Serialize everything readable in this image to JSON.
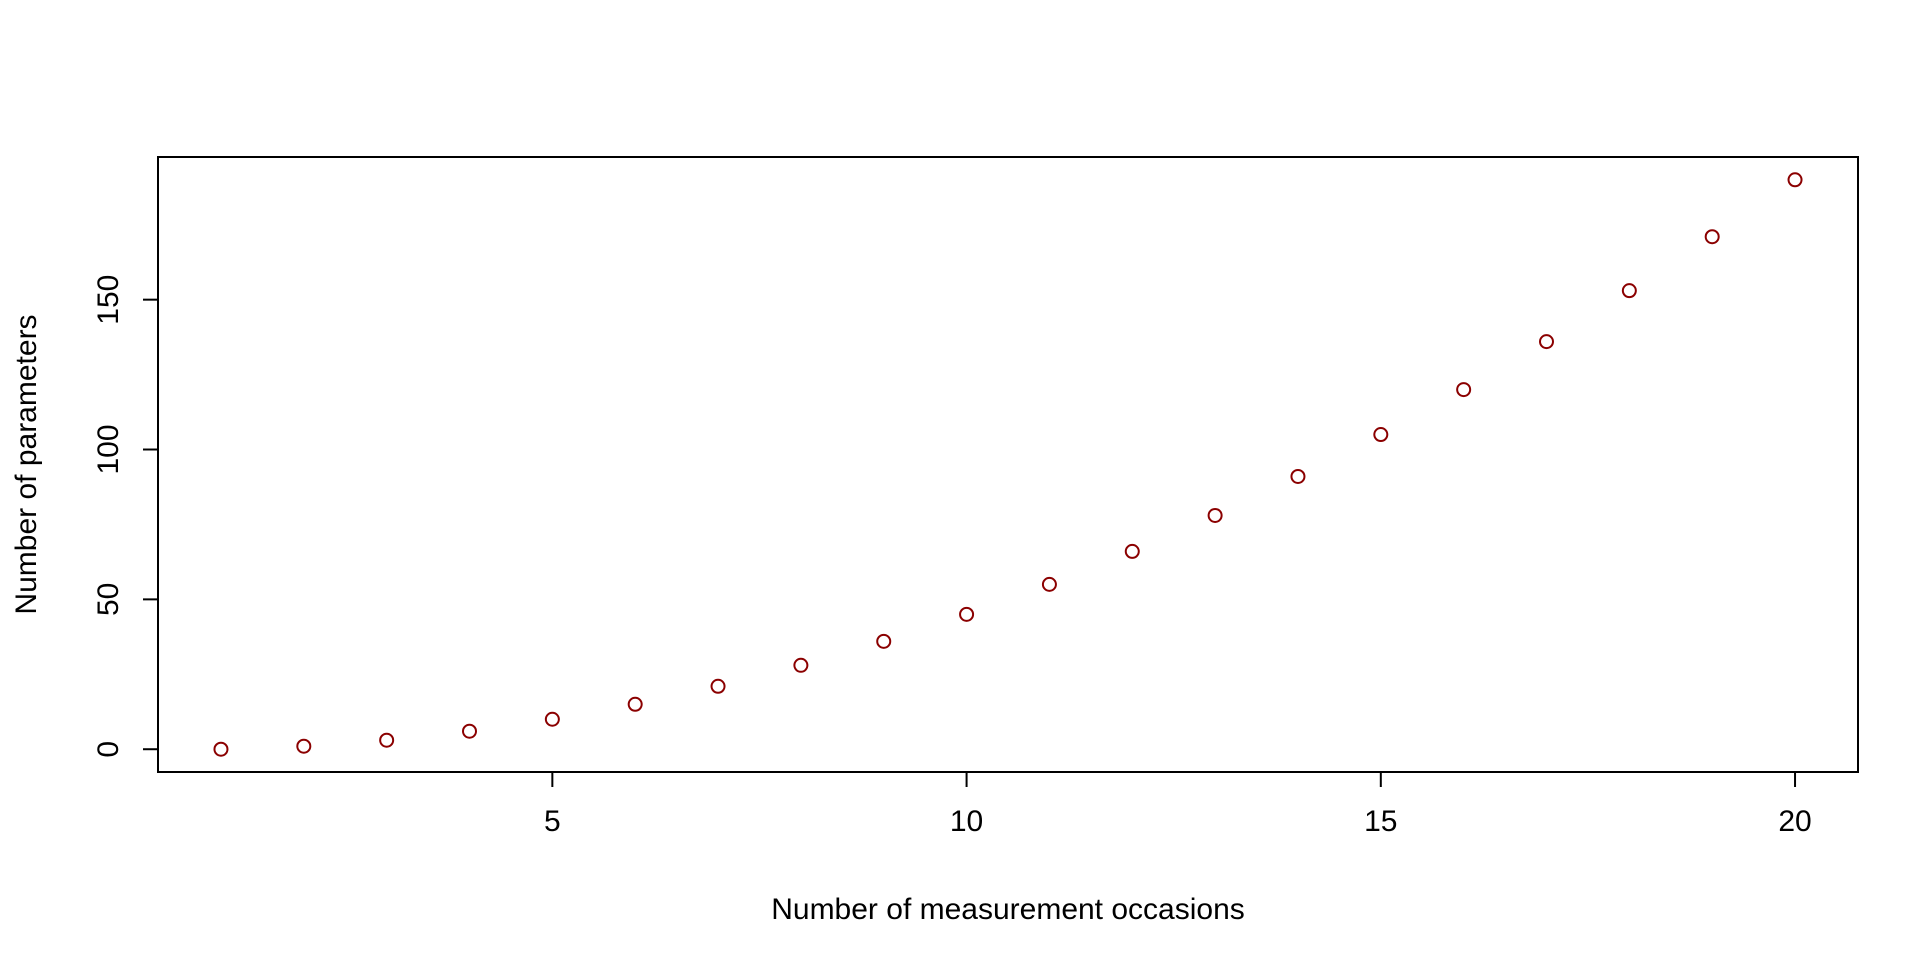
{
  "chart_data": {
    "type": "scatter",
    "title": "",
    "xlabel": "Number of measurement occasions",
    "ylabel": "Number of parameters",
    "x": [
      1,
      2,
      3,
      4,
      5,
      6,
      7,
      8,
      9,
      10,
      11,
      12,
      13,
      14,
      15,
      16,
      17,
      18,
      19,
      20
    ],
    "y": [
      0,
      1,
      3,
      6,
      10,
      15,
      21,
      28,
      36,
      45,
      55,
      66,
      78,
      91,
      105,
      120,
      136,
      153,
      171,
      190
    ],
    "xlim": [
      0.24,
      20.76
    ],
    "ylim": [
      -7.6,
      197.6
    ],
    "xticks": [
      5,
      10,
      15,
      20
    ],
    "yticks": [
      0,
      50,
      100,
      150
    ],
    "grid": false,
    "legend": "none",
    "colors": {
      "points": "#8b0000",
      "axes": "#000000"
    }
  }
}
